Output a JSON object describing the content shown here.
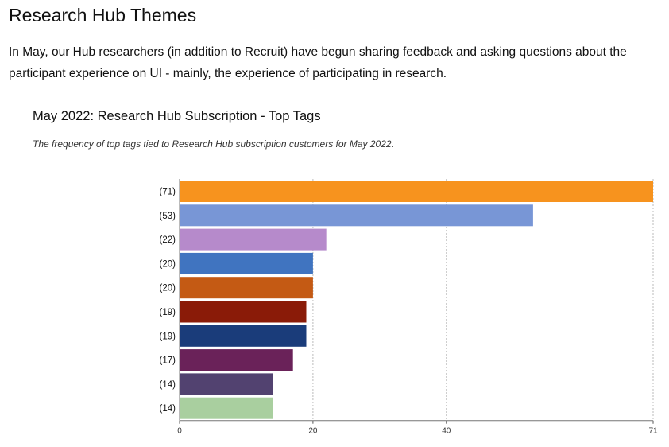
{
  "page": {
    "title": "Research Hub Themes",
    "intro": "In May, our Hub researchers (in addition to Recruit) have begun sharing feedback and asking questions about the participant experience on UI - mainly, the experience of participating in research."
  },
  "chart_data": {
    "type": "bar",
    "orientation": "horizontal",
    "title": "May 2022: Research Hub Subscription - Top Tags",
    "subtitle": "The frequency of top tags tied to Research Hub subscription customers for May 2022.",
    "xlim": [
      0,
      71
    ],
    "xticks": [
      0,
      20,
      40,
      71
    ],
    "grid": true,
    "categories": [
      "",
      "",
      "",
      "",
      "",
      "",
      "",
      "",
      "",
      ""
    ],
    "value_labels": [
      "(71)",
      "(53)",
      "(22)",
      "(20)",
      "(20)",
      "(19)",
      "(19)",
      "(17)",
      "(14)",
      "(14)"
    ],
    "values": [
      71,
      53,
      22,
      20,
      20,
      19,
      19,
      17,
      14,
      14
    ],
    "colors": [
      "#F7931E",
      "#7896D6",
      "#B68ACB",
      "#4074C0",
      "#C45A14",
      "#8A1B08",
      "#1A3C7A",
      "#6A2259",
      "#524270",
      "#A9CF9F"
    ]
  }
}
